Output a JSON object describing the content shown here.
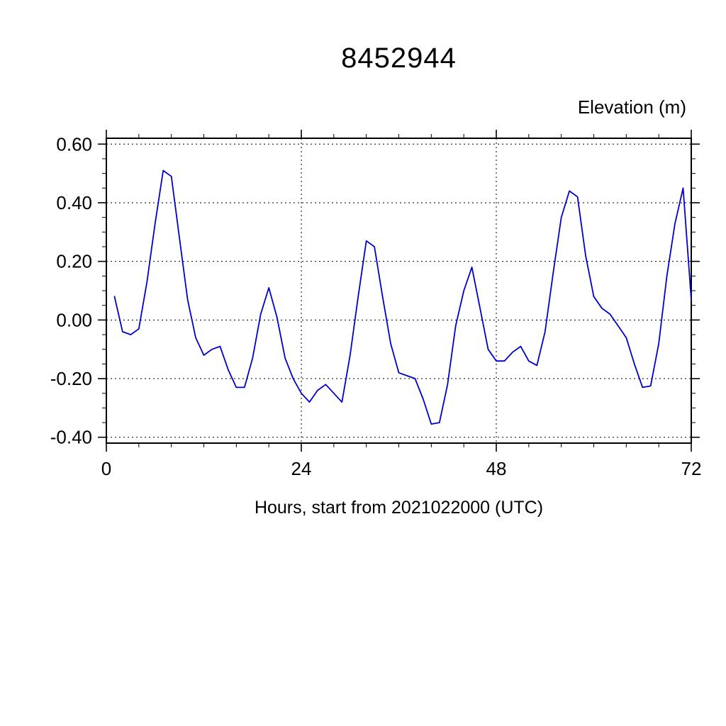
{
  "chart_data": {
    "type": "line",
    "title": "8452944",
    "xlabel": "Hours, start from 2021022000 (UTC)",
    "ylabel": "Elevation (m)",
    "xlim": [
      0,
      72
    ],
    "ylim": [
      -0.42,
      0.62
    ],
    "x_major_ticks": [
      0,
      24,
      48,
      72
    ],
    "x_tick_labels": [
      "0",
      "24",
      "48",
      "72"
    ],
    "x_minor_interval": 4,
    "y_major_ticks": [
      -0.4,
      -0.2,
      0.0,
      0.2,
      0.4,
      0.6
    ],
    "y_tick_labels": [
      "-0.40",
      "-0.20",
      "0.00",
      "0.20",
      "0.40",
      "0.60"
    ],
    "y_minor_interval": 0.05,
    "grid": true,
    "grid_style": "dashed",
    "legend_position": "none",
    "line_color": "#0000cc",
    "frame_color": "#000000",
    "background_color": "#ffffff",
    "series": [
      {
        "name": "elevation",
        "x": [
          1,
          2,
          3,
          4,
          5,
          6,
          7,
          8,
          9,
          10,
          11,
          12,
          13,
          14,
          15,
          16,
          17,
          18,
          19,
          20,
          21,
          22,
          23,
          24,
          25,
          26,
          27,
          28,
          29,
          30,
          31,
          32,
          33,
          34,
          35,
          36,
          37,
          38,
          39,
          40,
          41,
          42,
          43,
          44,
          45,
          46,
          47,
          48,
          49,
          50,
          51,
          52,
          53,
          54,
          55,
          56,
          57,
          58,
          59,
          60,
          61,
          62,
          63,
          64,
          65,
          66,
          67,
          68,
          69,
          70,
          71,
          72
        ],
        "y": [
          0.08,
          -0.04,
          -0.05,
          -0.03,
          0.13,
          0.33,
          0.51,
          0.49,
          0.28,
          0.07,
          -0.06,
          -0.12,
          -0.1,
          -0.09,
          -0.17,
          -0.23,
          -0.23,
          -0.13,
          0.02,
          0.11,
          0.01,
          -0.13,
          -0.2,
          -0.25,
          -0.28,
          -0.24,
          -0.22,
          -0.25,
          -0.28,
          -0.12,
          0.08,
          0.27,
          0.25,
          0.08,
          -0.08,
          -0.18,
          -0.19,
          -0.2,
          -0.27,
          -0.355,
          -0.35,
          -0.22,
          -0.02,
          0.1,
          0.18,
          0.04,
          -0.1,
          -0.14,
          -0.14,
          -0.11,
          -0.09,
          -0.14,
          -0.155,
          -0.04,
          0.16,
          0.35,
          0.44,
          0.42,
          0.22,
          0.08,
          0.04,
          0.02,
          -0.02,
          -0.06,
          -0.15,
          -0.23,
          -0.225,
          -0.08,
          0.15,
          0.33,
          0.45,
          0.07
        ]
      }
    ]
  }
}
